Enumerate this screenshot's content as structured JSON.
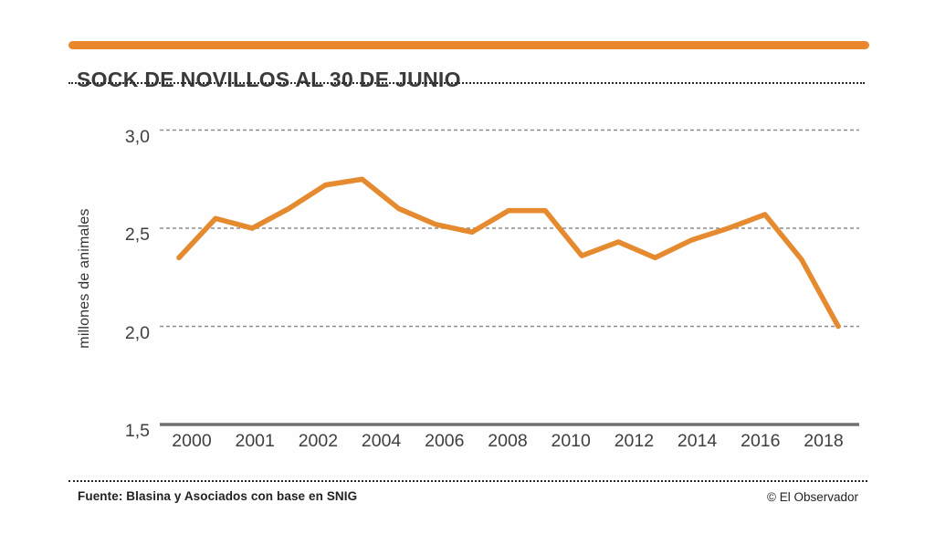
{
  "header": {
    "title": "SOCK DE NOVILLOS AL 30 DE JUNIO"
  },
  "footer": {
    "source": "Fuente: Blasina y Asociados con base en SNIG",
    "credit": "© El Observador"
  },
  "colors": {
    "accent_orange": "#E8872C",
    "line_orange": "#E58A2E",
    "title_gray": "#3B3B3A",
    "axis_text_gray": "#3F3F3F",
    "grid_gray": "#8F8F8F",
    "axis_line_gray": "#707070"
  },
  "chart_data": {
    "type": "line",
    "title": "SOCK DE NOVILLOS AL 30 DE JUNIO",
    "xlabel": "",
    "ylabel": "millones de animales",
    "x": [
      2000,
      2001,
      2002,
      2003,
      2004,
      2005,
      2006,
      2007,
      2008,
      2009,
      2010,
      2011,
      2012,
      2013,
      2014,
      2015,
      2016,
      2017,
      2018
    ],
    "values": [
      2.35,
      2.55,
      2.5,
      2.6,
      2.72,
      2.75,
      2.6,
      2.52,
      2.48,
      2.59,
      2.59,
      2.36,
      2.43,
      2.35,
      2.44,
      2.5,
      2.57,
      2.34,
      2.0
    ],
    "x_tick_labels": [
      "2000",
      "2001",
      "2002",
      "2004",
      "2006",
      "2008",
      "2010",
      "2012",
      "2014",
      "2016",
      "2018"
    ],
    "y_ticks": [
      3.0,
      2.5,
      2.0,
      1.5
    ],
    "y_tick_labels": [
      "3,0",
      "2,5",
      "2,0",
      "1,5"
    ],
    "ylim": [
      1.5,
      3.0
    ],
    "grid": "horizontal dashed at 2.0, 2.5, 3.0; solid baseline axis at 1.5",
    "legend_position": "none",
    "series_name": "stock de novillos"
  }
}
